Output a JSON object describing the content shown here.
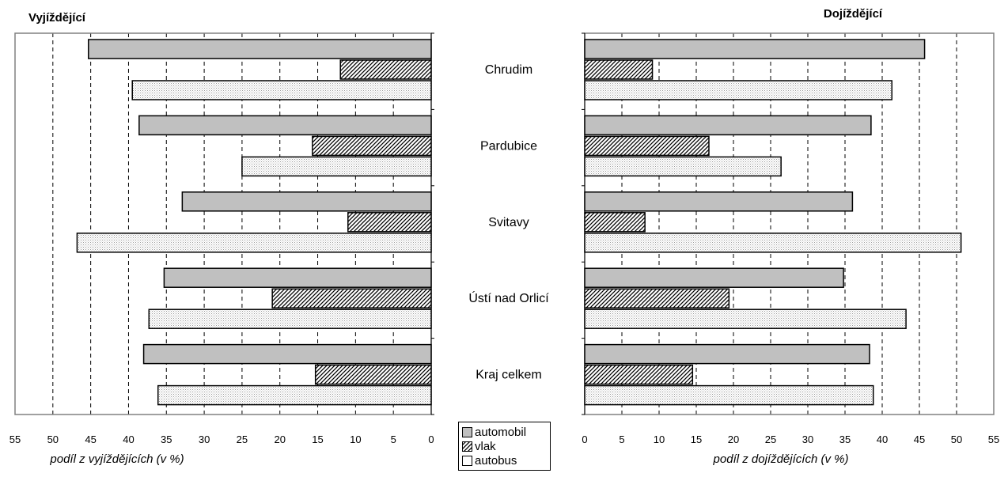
{
  "chart_data": [
    {
      "type": "bar",
      "orientation": "horizontal",
      "direction": "reversed",
      "title": "Vyjíždějící",
      "xlabel": "podíl z vyjíždějících (v %)",
      "ylabel": "",
      "xlim": [
        0,
        55
      ],
      "ticks": [
        "0",
        "5",
        "10",
        "15",
        "20",
        "25",
        "30",
        "35",
        "40",
        "45",
        "50",
        "55"
      ],
      "grid": "dashed vertical",
      "categories": [
        "Chrudim",
        "Pardubice",
        "Svitavy",
        "Ústí nad Orlicí",
        "Kraj celkem"
      ],
      "series": [
        {
          "name": "automobil",
          "values": [
            45.3,
            38.6,
            32.9,
            35.3,
            38.0
          ]
        },
        {
          "name": "vlak",
          "values": [
            12.0,
            15.7,
            11.0,
            21.0,
            15.3
          ]
        },
        {
          "name": "autobus",
          "values": [
            39.5,
            25.0,
            46.8,
            37.3,
            36.1
          ]
        }
      ]
    },
    {
      "type": "bar",
      "orientation": "horizontal",
      "title": "Dojíždějící",
      "xlabel": "podíl z dojíždějících (v %)",
      "ylabel": "",
      "xlim": [
        0,
        55
      ],
      "ticks": [
        "0",
        "5",
        "10",
        "15",
        "20",
        "25",
        "30",
        "35",
        "40",
        "45",
        "50",
        "55"
      ],
      "grid": "dashed vertical",
      "categories": [
        "Chrudim",
        "Pardubice",
        "Svitavy",
        "Ústí nad Orlicí",
        "Kraj celkem"
      ],
      "series": [
        {
          "name": "automobil",
          "values": [
            45.7,
            38.5,
            36.0,
            34.8,
            38.3
          ]
        },
        {
          "name": "vlak",
          "values": [
            9.1,
            16.7,
            8.1,
            19.4,
            14.5
          ]
        },
        {
          "name": "autobus",
          "values": [
            41.3,
            26.4,
            50.6,
            43.2,
            38.8
          ]
        }
      ]
    }
  ],
  "legend": {
    "placement": "bottom-center",
    "items": [
      {
        "label": "automobil",
        "fill": "#c0c0c0",
        "pattern": "solid"
      },
      {
        "label": "vlak",
        "fill": "#ffffff",
        "pattern": "diagonal-hatch"
      },
      {
        "label": "autobus",
        "fill": "#ffffff",
        "pattern": "dots"
      }
    ]
  },
  "colors": {
    "plot_border": "#808080",
    "grid": "#000000",
    "bar_stroke": "#000000"
  }
}
